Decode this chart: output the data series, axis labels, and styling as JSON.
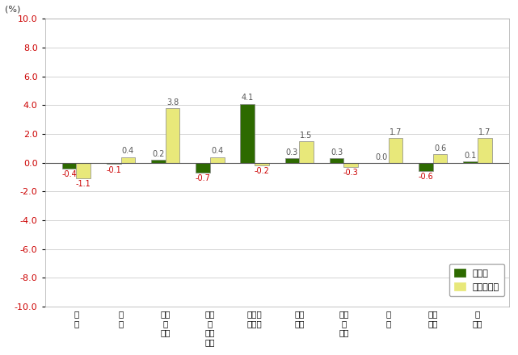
{
  "categories_line1": [
    "食",
    "住",
    "光熱",
    "家具",
    "被服及",
    "保健",
    "交通",
    "教",
    "教養",
    "諸"
  ],
  "categories_line2": [
    "料",
    "居",
    "・水道",
    "・家事用品",
    "び履物",
    "医療",
    "・通信",
    "育",
    "娯楽",
    "雑費"
  ],
  "cat_display": [
    "食\n料",
    "住\n居",
    "光熱\n・\n水道",
    "家具\n・\n家事\n用品",
    "被服及\nび履物",
    "保健\n医療",
    "交通\n・\n通信",
    "教\n育",
    "教養\n娯楽",
    "諸\n雑費"
  ],
  "maetsuki": [
    -0.4,
    -0.1,
    0.2,
    -0.7,
    4.1,
    0.3,
    0.3,
    0.0,
    -0.6,
    0.1
  ],
  "maenendo": [
    -1.1,
    0.4,
    3.8,
    0.4,
    -0.2,
    1.5,
    -0.3,
    1.7,
    0.6,
    1.7
  ],
  "green_color": "#2d6a00",
  "yellow_color": "#e8e87a",
  "bar_edge_color": "#888888",
  "positive_label_color": "#555555",
  "negative_label_color": "#cc0000",
  "ytick_color": "#cc0000",
  "ylim": [
    -10.0,
    10.0
  ],
  "yticks": [
    -10.0,
    -8.0,
    -6.0,
    -4.0,
    -2.0,
    0.0,
    2.0,
    4.0,
    6.0,
    8.0,
    10.0
  ],
  "ytick_labels": [
    "-10.0",
    "-8.0",
    "-6.0",
    "-4.0",
    "-2.0",
    "0.0",
    "2.0",
    "4.0",
    "6.0",
    "8.0",
    "10.0"
  ],
  "legend_label1": "対前月",
  "legend_label2": "対前年同月",
  "ylabel": "(%)",
  "background_color": "#ffffff",
  "plot_bg_color": "#ffffff",
  "grid_color": "#cccccc",
  "border_color": "#aaaaaa"
}
